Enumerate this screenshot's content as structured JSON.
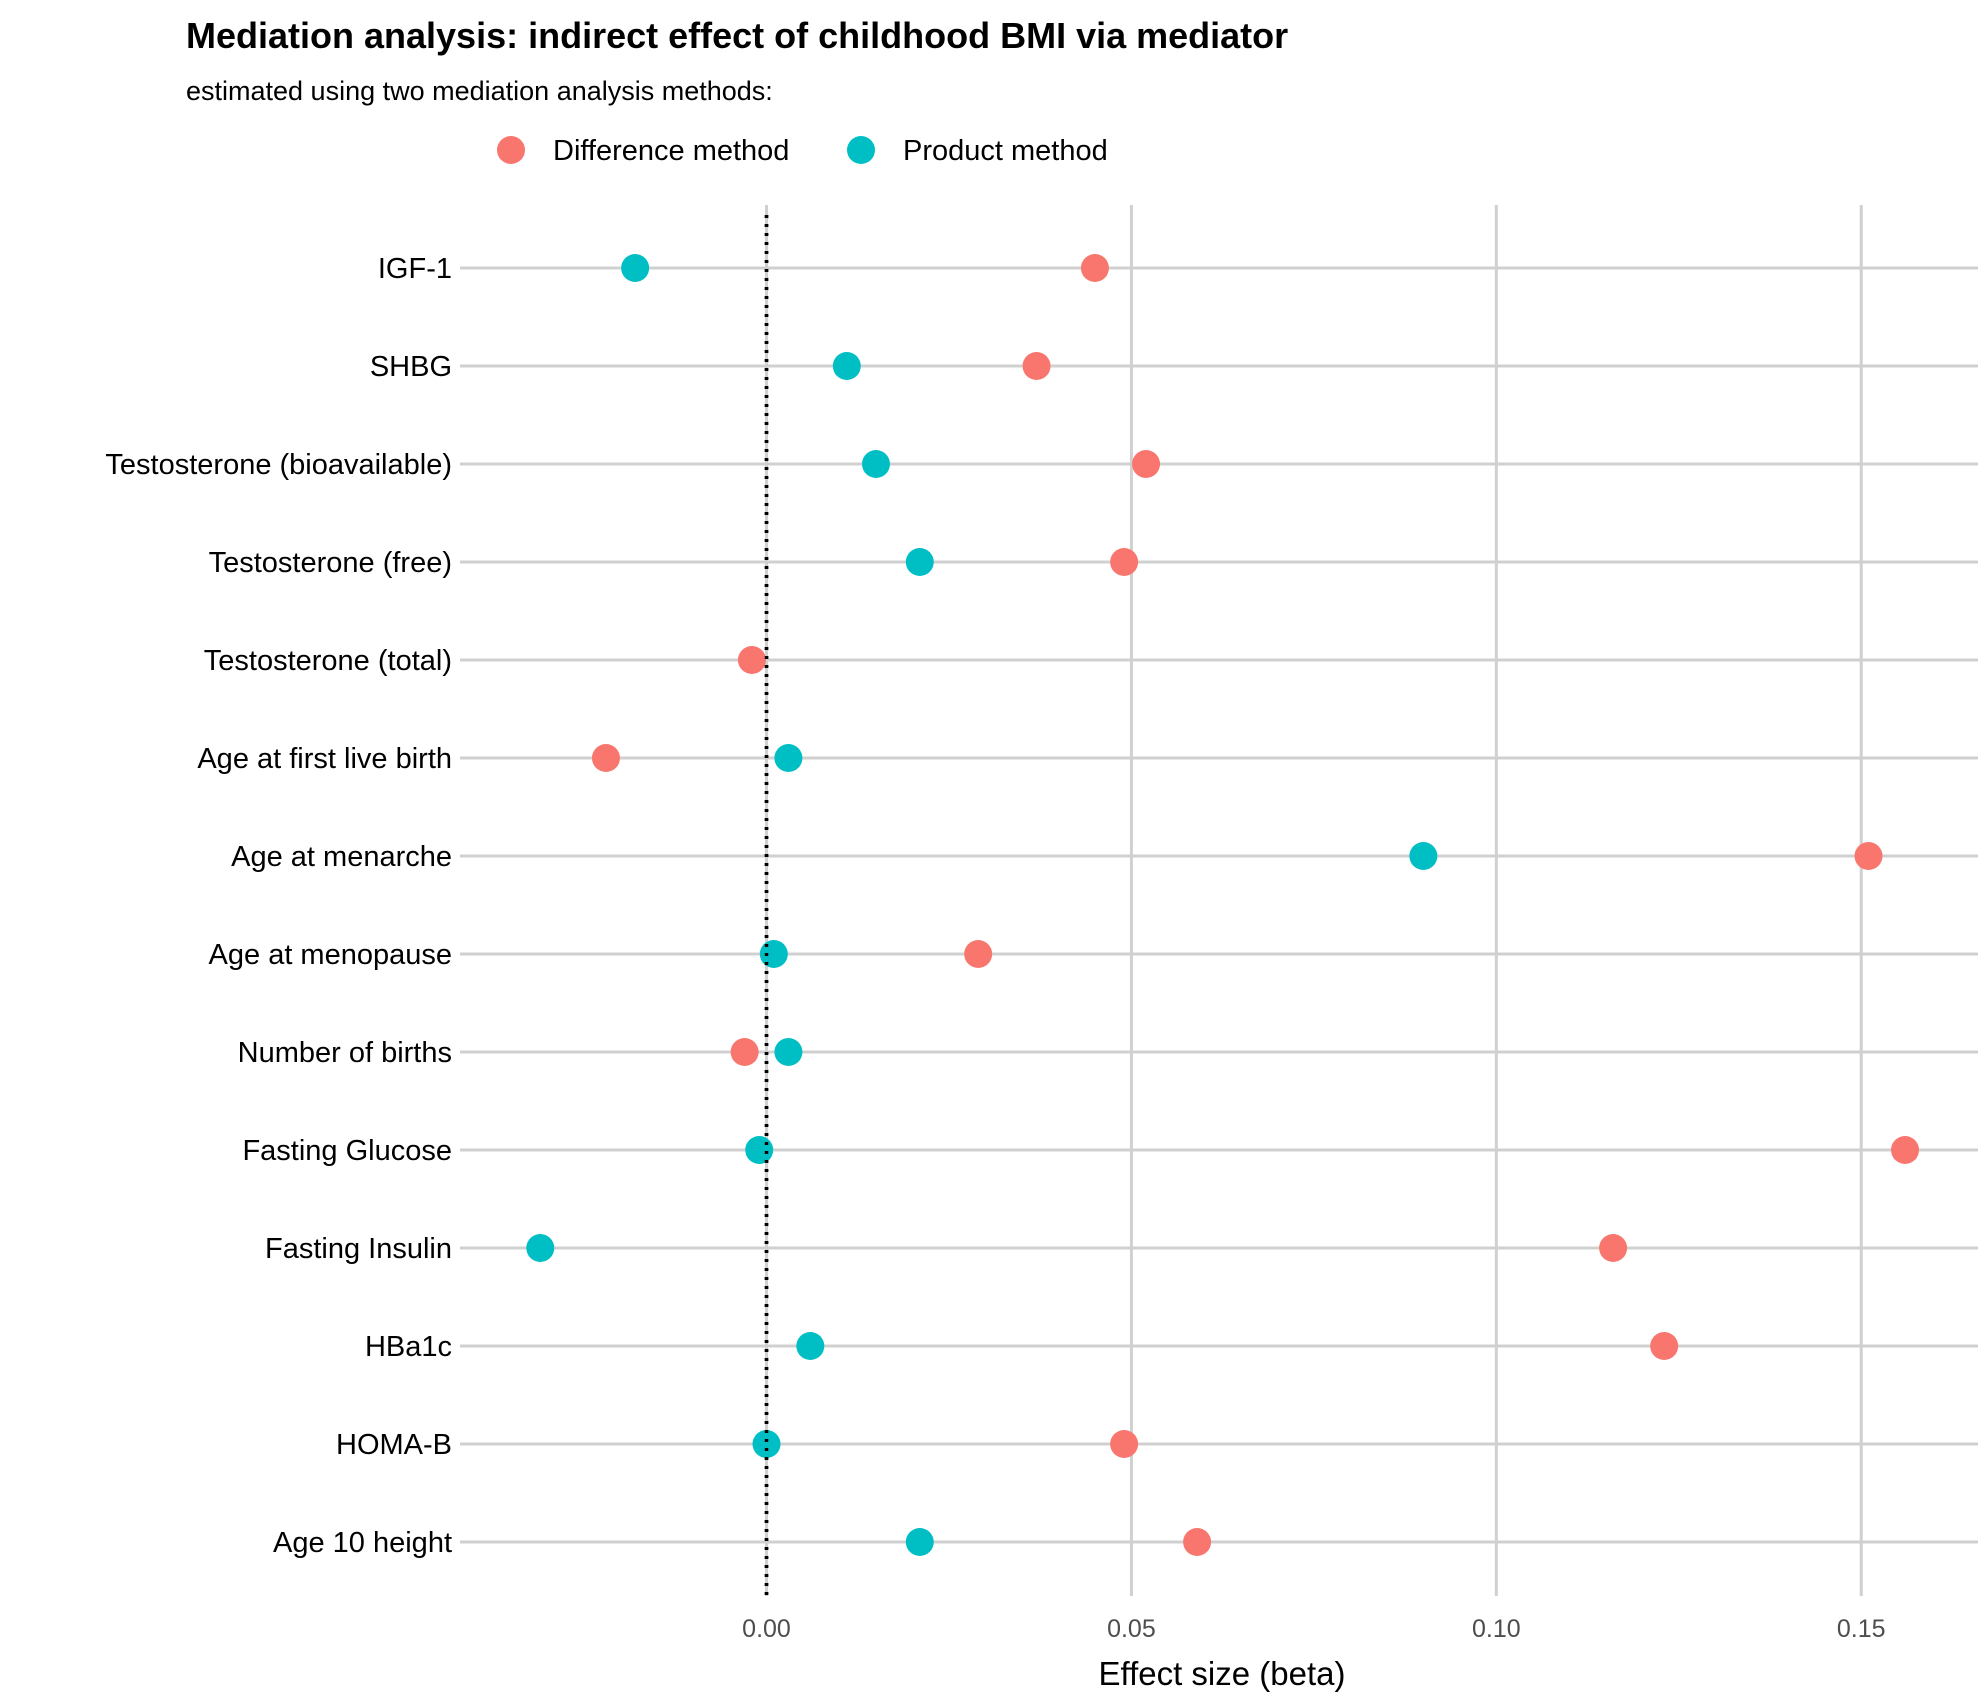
{
  "chart_data": {
    "type": "scatter",
    "title": "Mediation analysis: indirect effect of childhood BMI via mediator",
    "subtitle": "estimated using two mediation analysis methods:",
    "xlabel": "Effect size (beta)",
    "ylabel": "",
    "xlim": [
      -0.042,
      0.166
    ],
    "xticks": [
      0.0,
      0.05,
      0.1,
      0.15
    ],
    "xtick_labels": [
      "0.00",
      "0.05",
      "0.10",
      "0.15"
    ],
    "reference_line": 0,
    "legend_position": "top",
    "grid": true,
    "categories": [
      "IGF-1",
      "SHBG",
      "Testosterone (bioavailable)",
      "Testosterone (free)",
      "Testosterone (total)",
      "Age at first live birth",
      "Age at menarche",
      "Age at menopause",
      "Number of births",
      "Fasting Glucose",
      "Fasting Insulin",
      "HBa1c",
      "HOMA-B",
      "Age 10 height"
    ],
    "series": [
      {
        "name": "Difference method",
        "color": "#F8766D",
        "values": [
          0.045,
          0.037,
          0.052,
          0.049,
          -0.002,
          -0.022,
          0.151,
          0.029,
          -0.003,
          0.156,
          0.116,
          0.123,
          0.049,
          0.059
        ]
      },
      {
        "name": "Product method",
        "color": "#00BFC4",
        "values": [
          -0.018,
          0.011,
          0.015,
          0.021,
          null,
          0.003,
          0.09,
          0.001,
          0.003,
          -0.001,
          -0.031,
          0.006,
          0.0,
          0.021
        ]
      }
    ]
  }
}
